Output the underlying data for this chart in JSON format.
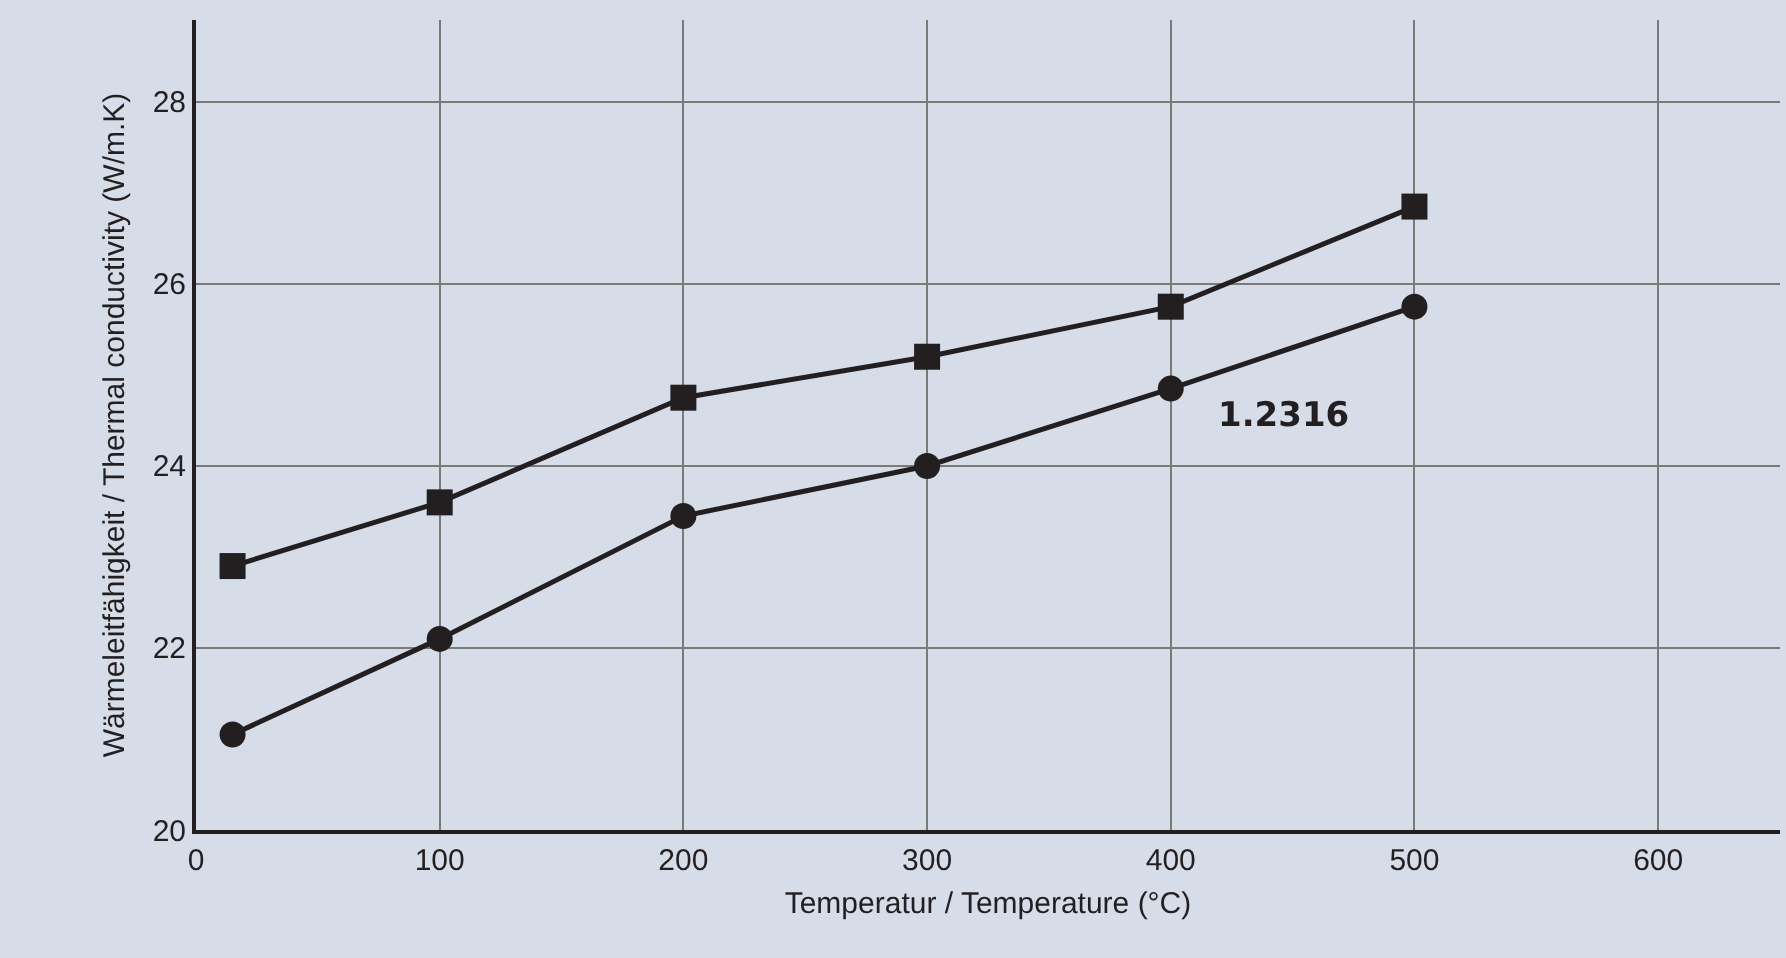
{
  "chart_data": {
    "type": "line",
    "xlabel": "Temperatur / Temperature (°C)",
    "ylabel": "Wärmeleitfähigkeit / Thermal conductivity (W/m.K)",
    "xlim": [
      0,
      650
    ],
    "xticks": [
      0,
      100,
      200,
      300,
      400,
      500,
      600
    ],
    "ylim": [
      20,
      28.9
    ],
    "yticks": [
      20,
      22,
      24,
      26,
      28
    ],
    "grid": true,
    "legend": false,
    "line_style": "solid",
    "series": [
      {
        "color": "#231f20",
        "marker": "square",
        "x": [
          15,
          100,
          200,
          300,
          400,
          500
        ],
        "values": [
          22.9,
          23.6,
          24.75,
          25.2,
          25.75,
          26.85
        ]
      },
      {
        "name": "1.2316",
        "color": "#231f20",
        "marker": "circle",
        "x": [
          15,
          100,
          200,
          300,
          400,
          500
        ],
        "values": [
          21.05,
          22.1,
          23.45,
          24.0,
          24.85,
          25.75
        ]
      }
    ]
  }
}
